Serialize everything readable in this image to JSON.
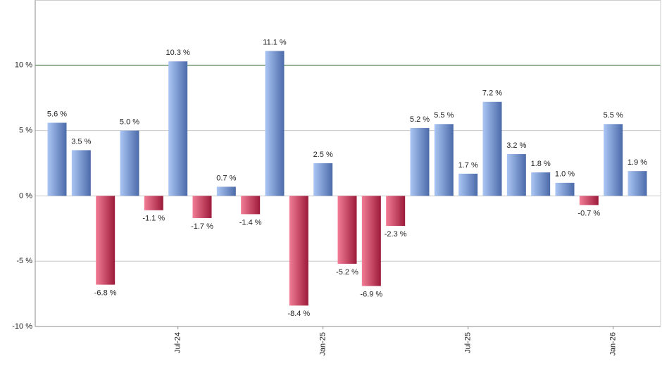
{
  "chart_data": {
    "type": "bar",
    "categories": [
      null,
      null,
      null,
      null,
      null,
      "Jul-24",
      null,
      null,
      null,
      null,
      null,
      "Jan-25",
      null,
      null,
      null,
      null,
      null,
      "Jul-25",
      null,
      null,
      null,
      null,
      null,
      "Jan-26",
      null
    ],
    "values": [
      5.6,
      3.5,
      -6.8,
      5.0,
      -1.1,
      10.3,
      -1.7,
      0.7,
      -1.4,
      11.1,
      -8.4,
      2.5,
      -5.2,
      -6.9,
      -2.3,
      5.2,
      5.5,
      1.7,
      7.2,
      3.2,
      1.8,
      1.0,
      -0.7,
      5.5,
      1.9
    ],
    "value_labels": [
      "5.6 %",
      "3.5 %",
      "-6.8 %",
      "5.0 %",
      "-1.1 %",
      "10.3 %",
      "-1.7 %",
      "0.7 %",
      "-1.4 %",
      "11.1 %",
      "-8.4 %",
      "2.5 %",
      "-5.2 %",
      "-6.9 %",
      "-2.3 %",
      "5.2 %",
      "5.5 %",
      "1.7 %",
      "7.2 %",
      "3.2 %",
      "1.8 %",
      "1.0 %",
      "-0.7 %",
      "5.5 %",
      "1.9 %"
    ],
    "colors": {
      "positive": [
        "#abc6f4",
        "#4b6aa9"
      ],
      "negative": [
        "#f27d95",
        "#9c1a3a"
      ]
    },
    "ylim": [
      -10,
      15
    ],
    "yticks": [
      {
        "value": -10,
        "label": "-10 %"
      },
      {
        "value": -5,
        "label": "-5 %"
      },
      {
        "value": 0,
        "label": "0 %"
      },
      {
        "value": 5,
        "label": "5 %"
      },
      {
        "value": 10,
        "label": "10 %"
      }
    ],
    "grid": true,
    "reference_line": {
      "value": 10,
      "color": "#2e6b2e"
    }
  }
}
